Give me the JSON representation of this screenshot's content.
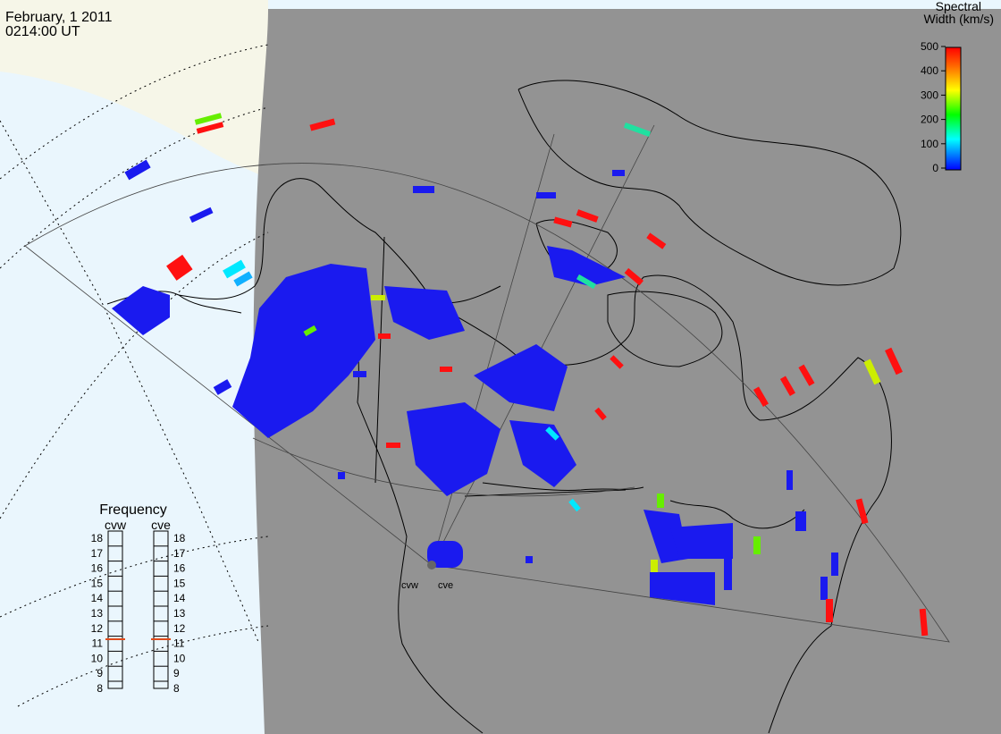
{
  "header": {
    "date": "February, 1 2011",
    "time": "0214:00 UT"
  },
  "colorbar": {
    "title_line1": "Spectral",
    "title_line2": "Width (km/s)",
    "lim": [
      0,
      500
    ],
    "ticks": [
      0,
      100,
      200,
      300,
      400,
      500
    ]
  },
  "frequency": {
    "title": "Frequency",
    "lim": [
      8,
      18
    ],
    "ticks": [
      8,
      9,
      10,
      11,
      12,
      13,
      14,
      15,
      16,
      17,
      18
    ],
    "radars": [
      {
        "name": "cvw",
        "value": 10.8
      },
      {
        "name": "cve",
        "value": 10.8
      }
    ]
  },
  "sites": [
    "cvw",
    "cve"
  ]
}
